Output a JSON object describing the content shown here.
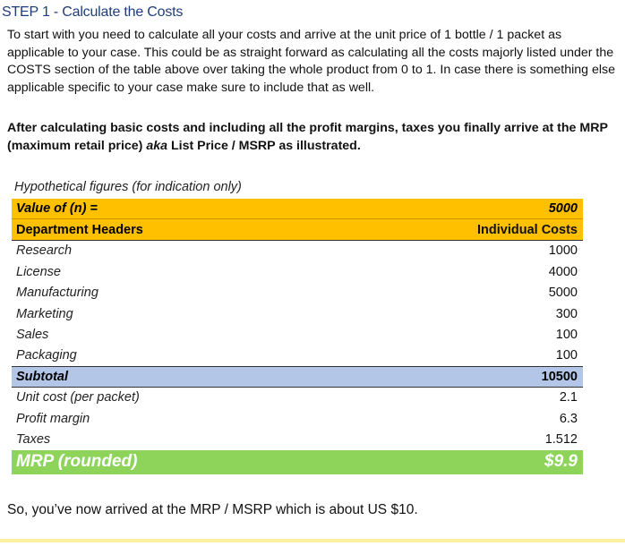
{
  "step_title": "STEP 1 - Calculate the Costs",
  "intro_text": "To start with you need to calculate all your costs and arrive at the unit price of 1 bottle / 1 packet as applicable to your case. This could be as straight forward as calculating all the costs majorly listed under the COSTS section of the table above over taking the whole product from 0 to 1. In case there is something else applicable specific to your case make sure to include that as well.",
  "bold_text_before": "After calculating basic costs and including all the profit margins, taxes you finally arrive at the MRP (maximum retail price) ",
  "bold_text_italic": "aka",
  "bold_text_after": " List Price / MSRP as illustrated.",
  "table": {
    "caption": "Hypothetical figures (for indication only)",
    "n_label": "Value of (n) =",
    "n_value": "5000",
    "header_label": "Department Headers",
    "header_value": "Individual Costs",
    "costs": [
      {
        "label": "Research",
        "value": "1000"
      },
      {
        "label": "License",
        "value": "4000"
      },
      {
        "label": "Manufacturing",
        "value": "5000"
      },
      {
        "label": "Marketing",
        "value": "300"
      },
      {
        "label": "Sales",
        "value": "100"
      },
      {
        "label": "Packaging",
        "value": "100"
      }
    ],
    "subtotal_label": "Subtotal",
    "subtotal_value": "10500",
    "extras": [
      {
        "label": "Unit cost (per packet)",
        "value": "2.1"
      },
      {
        "label": "Profit margin",
        "value": "6.3"
      },
      {
        "label": "Taxes",
        "value": "1.512"
      }
    ],
    "mrp_label": "MRP (rounded)",
    "mrp_value": "$9.9"
  },
  "outro_text": "So, you’ve now arrived at the MRP / MSRP which is about US $10.",
  "colors": {
    "accent_orange": "#ffc000",
    "subtotal_blue": "#b4c6e7",
    "mrp_green": "#8ed45a",
    "title_blue": "#1f3d7a"
  }
}
